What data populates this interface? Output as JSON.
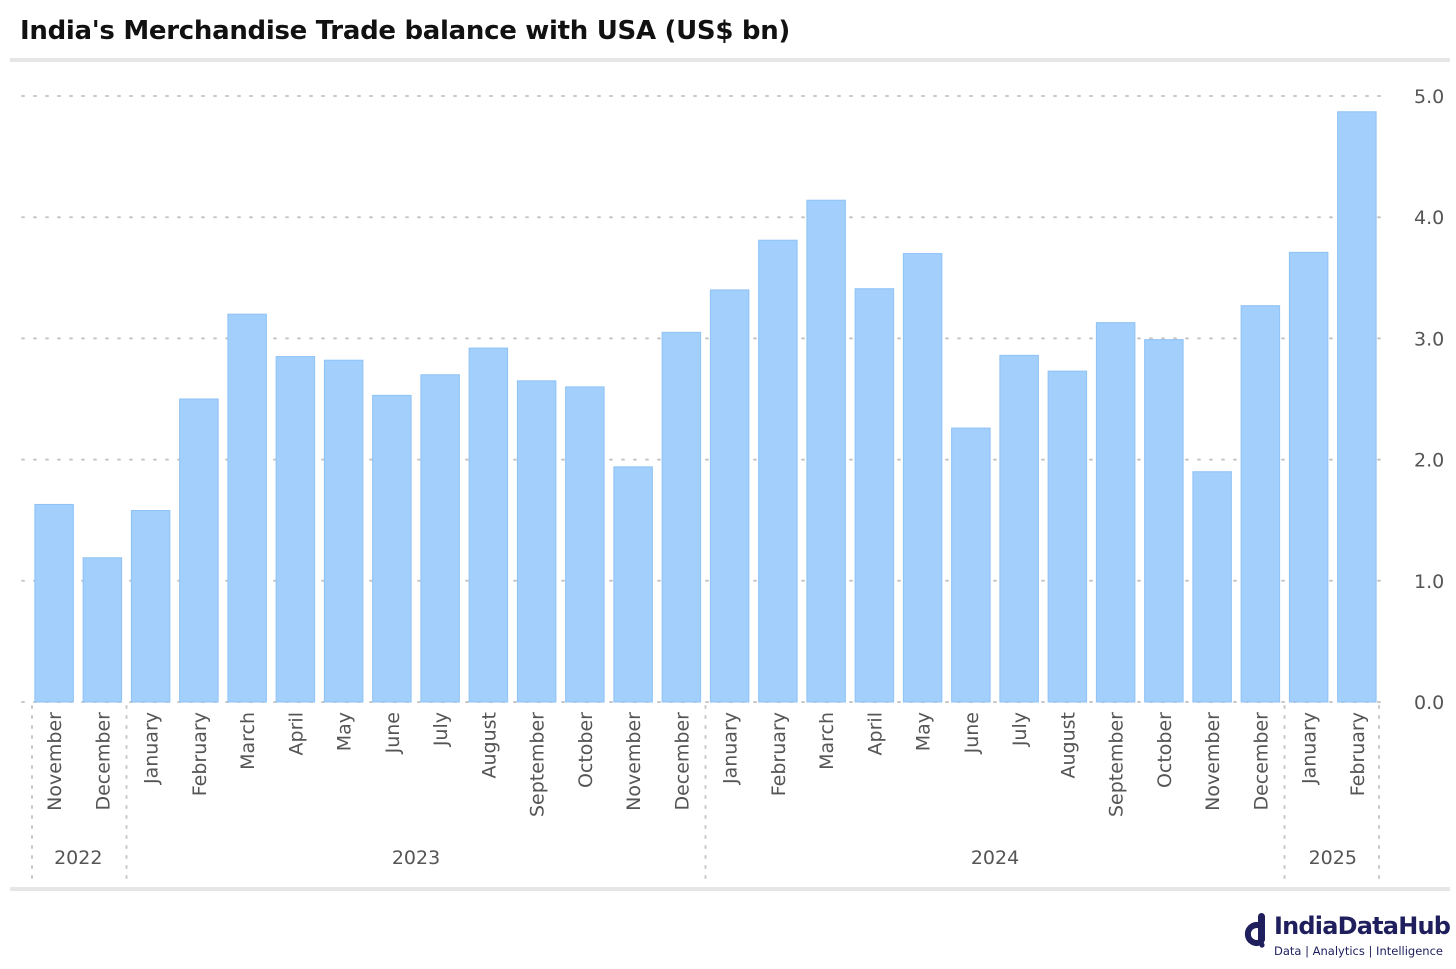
{
  "title": "India's Merchandise Trade balance with USA (US$ bn)",
  "colors": {
    "bar": "#a2cffb",
    "bar_edge": "#8fc2f5",
    "grid": "#c8c8c8",
    "text": "#555555",
    "brand": "#1e1f5c"
  },
  "brand": {
    "name": "IndiaDataHub",
    "tagline": "Data | Analytics | Intelligence",
    "icon": "indiadatahub-logo-icon"
  },
  "chart_data": {
    "type": "bar",
    "title": "India's Merchandise Trade balance with USA (US$ bn)",
    "xlabel": "",
    "ylabel": "",
    "ylim": [
      0,
      5
    ],
    "yticks": [
      "0.0",
      "1.0",
      "2.0",
      "3.0",
      "4.0",
      "5.0"
    ],
    "y_axis_side": "right",
    "grid": "horizontal-dotted",
    "legend": "none",
    "categories": [
      "November",
      "December",
      "January",
      "February",
      "March",
      "April",
      "May",
      "June",
      "July",
      "August",
      "September",
      "October",
      "November",
      "December",
      "January",
      "February",
      "March",
      "April",
      "May",
      "June",
      "July",
      "August",
      "September",
      "October",
      "November",
      "December",
      "January",
      "February"
    ],
    "values": [
      1.63,
      1.19,
      1.58,
      2.5,
      3.2,
      2.85,
      2.82,
      2.53,
      2.7,
      2.92,
      2.65,
      2.6,
      1.94,
      3.05,
      3.4,
      3.81,
      4.14,
      3.41,
      3.7,
      2.26,
      2.86,
      2.73,
      3.13,
      2.99,
      1.9,
      3.27,
      3.71,
      4.87
    ],
    "year_groups": [
      {
        "label": "2022",
        "count": 2
      },
      {
        "label": "2023",
        "count": 12
      },
      {
        "label": "2024",
        "count": 12
      },
      {
        "label": "2025",
        "count": 2
      }
    ]
  }
}
